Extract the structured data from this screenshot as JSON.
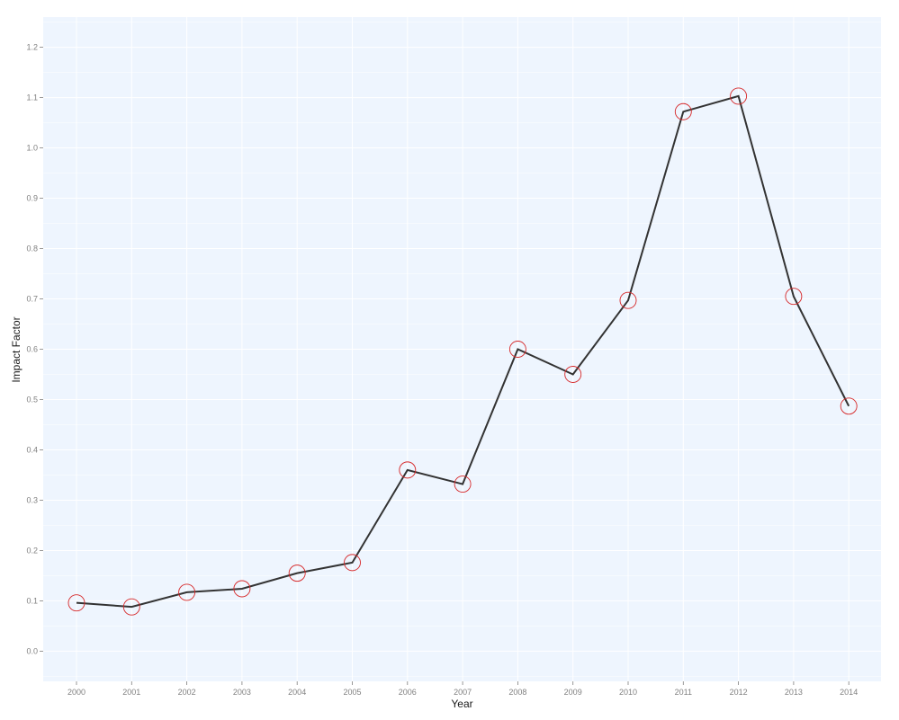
{
  "chart_data": {
    "type": "line",
    "title": "",
    "xlabel": "Year",
    "ylabel": "Impact Factor",
    "x": [
      "2000",
      "2001",
      "2002",
      "2003",
      "2004",
      "2005",
      "2006",
      "2007",
      "2008",
      "2009",
      "2010",
      "2011",
      "2012",
      "2013",
      "2014"
    ],
    "series": [
      {
        "values": [
          0.096,
          0.088,
          0.117,
          0.124,
          0.155,
          0.176,
          0.36,
          0.332,
          0.6,
          0.55,
          0.697,
          1.072,
          1.103,
          0.705,
          0.487
        ]
      }
    ],
    "ylim": [
      -0.06,
      1.26
    ],
    "yticks": [
      "0.0",
      "0.1",
      "0.2",
      "0.3",
      "0.4",
      "0.5",
      "0.6",
      "0.7",
      "0.8",
      "0.9",
      "1.0",
      "1.1",
      "1.2"
    ],
    "grid": true,
    "colors": {
      "panel_background": "#eef5fe",
      "gridline": "#ffffff",
      "line": "#333333",
      "marker": "#d62728"
    }
  }
}
